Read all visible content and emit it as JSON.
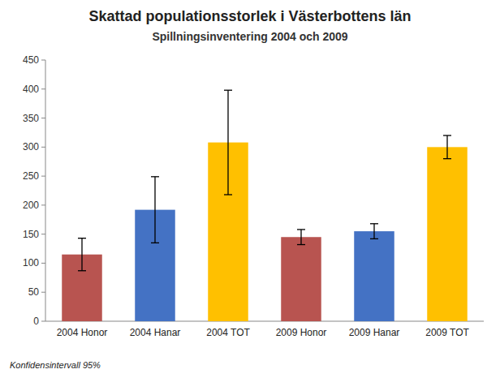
{
  "chart_data": {
    "type": "bar",
    "title": "Skattad populationsstorlek i Västerbottens län",
    "subtitle": "Spillningsinventering 2004 och 2009",
    "categories": [
      "2004 Honor",
      "2004 Hanar",
      "2004 TOT",
      "2009 Honor",
      "2009 Hanar",
      "2009 TOT"
    ],
    "values": [
      115,
      192,
      308,
      145,
      155,
      300
    ],
    "errors": [
      28,
      57,
      90,
      13,
      13,
      20
    ],
    "colors": [
      "#b85450",
      "#4472c4",
      "#ffc000",
      "#b85450",
      "#4472c4",
      "#ffc000"
    ],
    "ylim": [
      0,
      450
    ],
    "yticks": [
      0,
      50,
      100,
      150,
      200,
      250,
      300,
      350,
      400,
      450
    ],
    "grid": false,
    "footnote": "Konfidensintervall 95%"
  }
}
